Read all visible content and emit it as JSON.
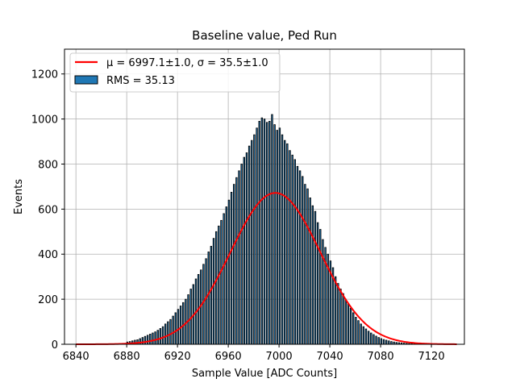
{
  "chart_data": {
    "type": "bar",
    "title": "Baseline value, Ped Run",
    "xlabel": "Sample Value [ADC Counts]",
    "ylabel": "Events",
    "xlim": [
      6831,
      7146
    ],
    "ylim": [
      0,
      1310
    ],
    "x_ticks": [
      6840,
      6880,
      6920,
      6960,
      7000,
      7040,
      7080,
      7120
    ],
    "y_ticks": [
      0,
      200,
      400,
      600,
      800,
      1000,
      1200
    ],
    "grid": true,
    "legend_position": "top-left",
    "bin_width": 1,
    "histogram": {
      "name": "RMS = 35.13",
      "color": "#1f77b4",
      "x": [
        6880,
        6882,
        6884,
        6886,
        6888,
        6890,
        6892,
        6894,
        6896,
        6898,
        6900,
        6902,
        6904,
        6906,
        6908,
        6910,
        6912,
        6914,
        6916,
        6918,
        6920,
        6922,
        6924,
        6926,
        6928,
        6930,
        6932,
        6934,
        6936,
        6938,
        6940,
        6942,
        6944,
        6946,
        6948,
        6950,
        6952,
        6954,
        6956,
        6958,
        6960,
        6962,
        6964,
        6966,
        6968,
        6970,
        6972,
        6974,
        6976,
        6978,
        6980,
        6982,
        6984,
        6986,
        6988,
        6990,
        6992,
        6994,
        6996,
        6998,
        7000,
        7002,
        7004,
        7006,
        7008,
        7010,
        7012,
        7014,
        7016,
        7018,
        7020,
        7022,
        7024,
        7026,
        7028,
        7030,
        7032,
        7034,
        7036,
        7038,
        7040,
        7042,
        7044,
        7046,
        7048,
        7050,
        7052,
        7054,
        7056,
        7058,
        7060,
        7062,
        7064,
        7066,
        7068,
        7070,
        7072,
        7074,
        7076,
        7078,
        7080,
        7082,
        7084,
        7086,
        7088,
        7090,
        7092,
        7094,
        7096,
        7098,
        7100,
        7102,
        7104,
        7106,
        7108,
        7110,
        7112,
        7114,
        7116
      ],
      "values": [
        10,
        12,
        15,
        18,
        20,
        25,
        30,
        35,
        40,
        45,
        50,
        55,
        62,
        70,
        78,
        90,
        100,
        110,
        125,
        140,
        155,
        170,
        185,
        200,
        220,
        245,
        265,
        290,
        310,
        330,
        355,
        380,
        410,
        435,
        470,
        500,
        525,
        550,
        580,
        610,
        640,
        675,
        710,
        740,
        770,
        800,
        830,
        850,
        880,
        905,
        930,
        960,
        990,
        1005,
        1000,
        985,
        990,
        1020,
        975,
        950,
        960,
        930,
        905,
        890,
        860,
        840,
        820,
        790,
        770,
        745,
        710,
        690,
        650,
        615,
        590,
        540,
        510,
        465,
        430,
        400,
        370,
        340,
        300,
        270,
        245,
        225,
        200,
        180,
        160,
        140,
        120,
        105,
        90,
        78,
        68,
        58,
        50,
        43,
        36,
        30,
        25,
        21,
        18,
        15,
        12,
        10,
        8,
        7,
        6,
        5,
        4,
        3,
        3,
        2,
        2,
        1,
        1,
        1,
        1
      ]
    },
    "fit": {
      "name": "μ = 6997.1±1.0, σ = 35.5±1.0",
      "color": "#ff0000",
      "mu": 6997.1,
      "sigma": 35.5,
      "amplitude": 672,
      "x_range": [
        6840,
        7140
      ]
    }
  }
}
